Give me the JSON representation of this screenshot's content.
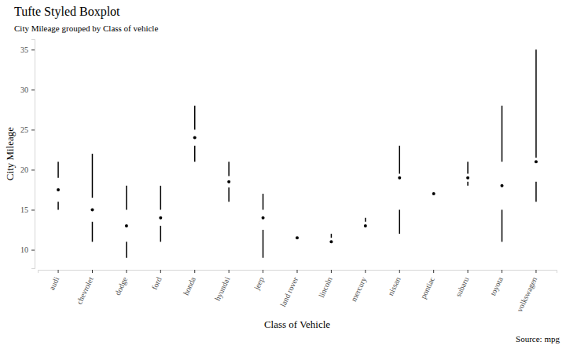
{
  "chart_data": {
    "type": "boxplot",
    "title": "Tufte Styled Boxplot",
    "subtitle": "City Mileage grouped by Class of vehicle",
    "x_label": "Class of Vehicle",
    "y_label": "City Mileage",
    "caption": "Source: mpg",
    "categories": [
      "audi",
      "chevrolet",
      "dodge",
      "ford",
      "honda",
      "hyundai",
      "jeep",
      "land rover",
      "lincoln",
      "mercury",
      "nissan",
      "pontiac",
      "subaru",
      "toyota",
      "volkswagen"
    ],
    "min": [
      15,
      11,
      9,
      11,
      21,
      16,
      9,
      11.5,
      11,
      13,
      12,
      17,
      18,
      11,
      16
    ],
    "q1": [
      16,
      13.5,
      11,
      13,
      23,
      17.8,
      12.5,
      11.5,
      11,
      13,
      15,
      17,
      18.5,
      15,
      18.5
    ],
    "median": [
      17.5,
      15,
      13,
      14,
      24,
      18.5,
      14,
      11.5,
      11,
      13,
      19,
      17,
      19,
      18,
      21
    ],
    "q3": [
      19,
      16.5,
      15,
      15,
      25,
      19.2,
      15,
      11.5,
      11.5,
      13.5,
      19.5,
      17,
      19.5,
      21,
      21.5
    ],
    "max": [
      21,
      22,
      18,
      18,
      28,
      21,
      17,
      11.5,
      12,
      14,
      23,
      17,
      21,
      28,
      35
    ],
    "color": "#000000",
    "ylim": [
      7.7,
      36.3
    ],
    "yticks": [
      10,
      15,
      20,
      25,
      30,
      35
    ],
    "grid": false
  }
}
